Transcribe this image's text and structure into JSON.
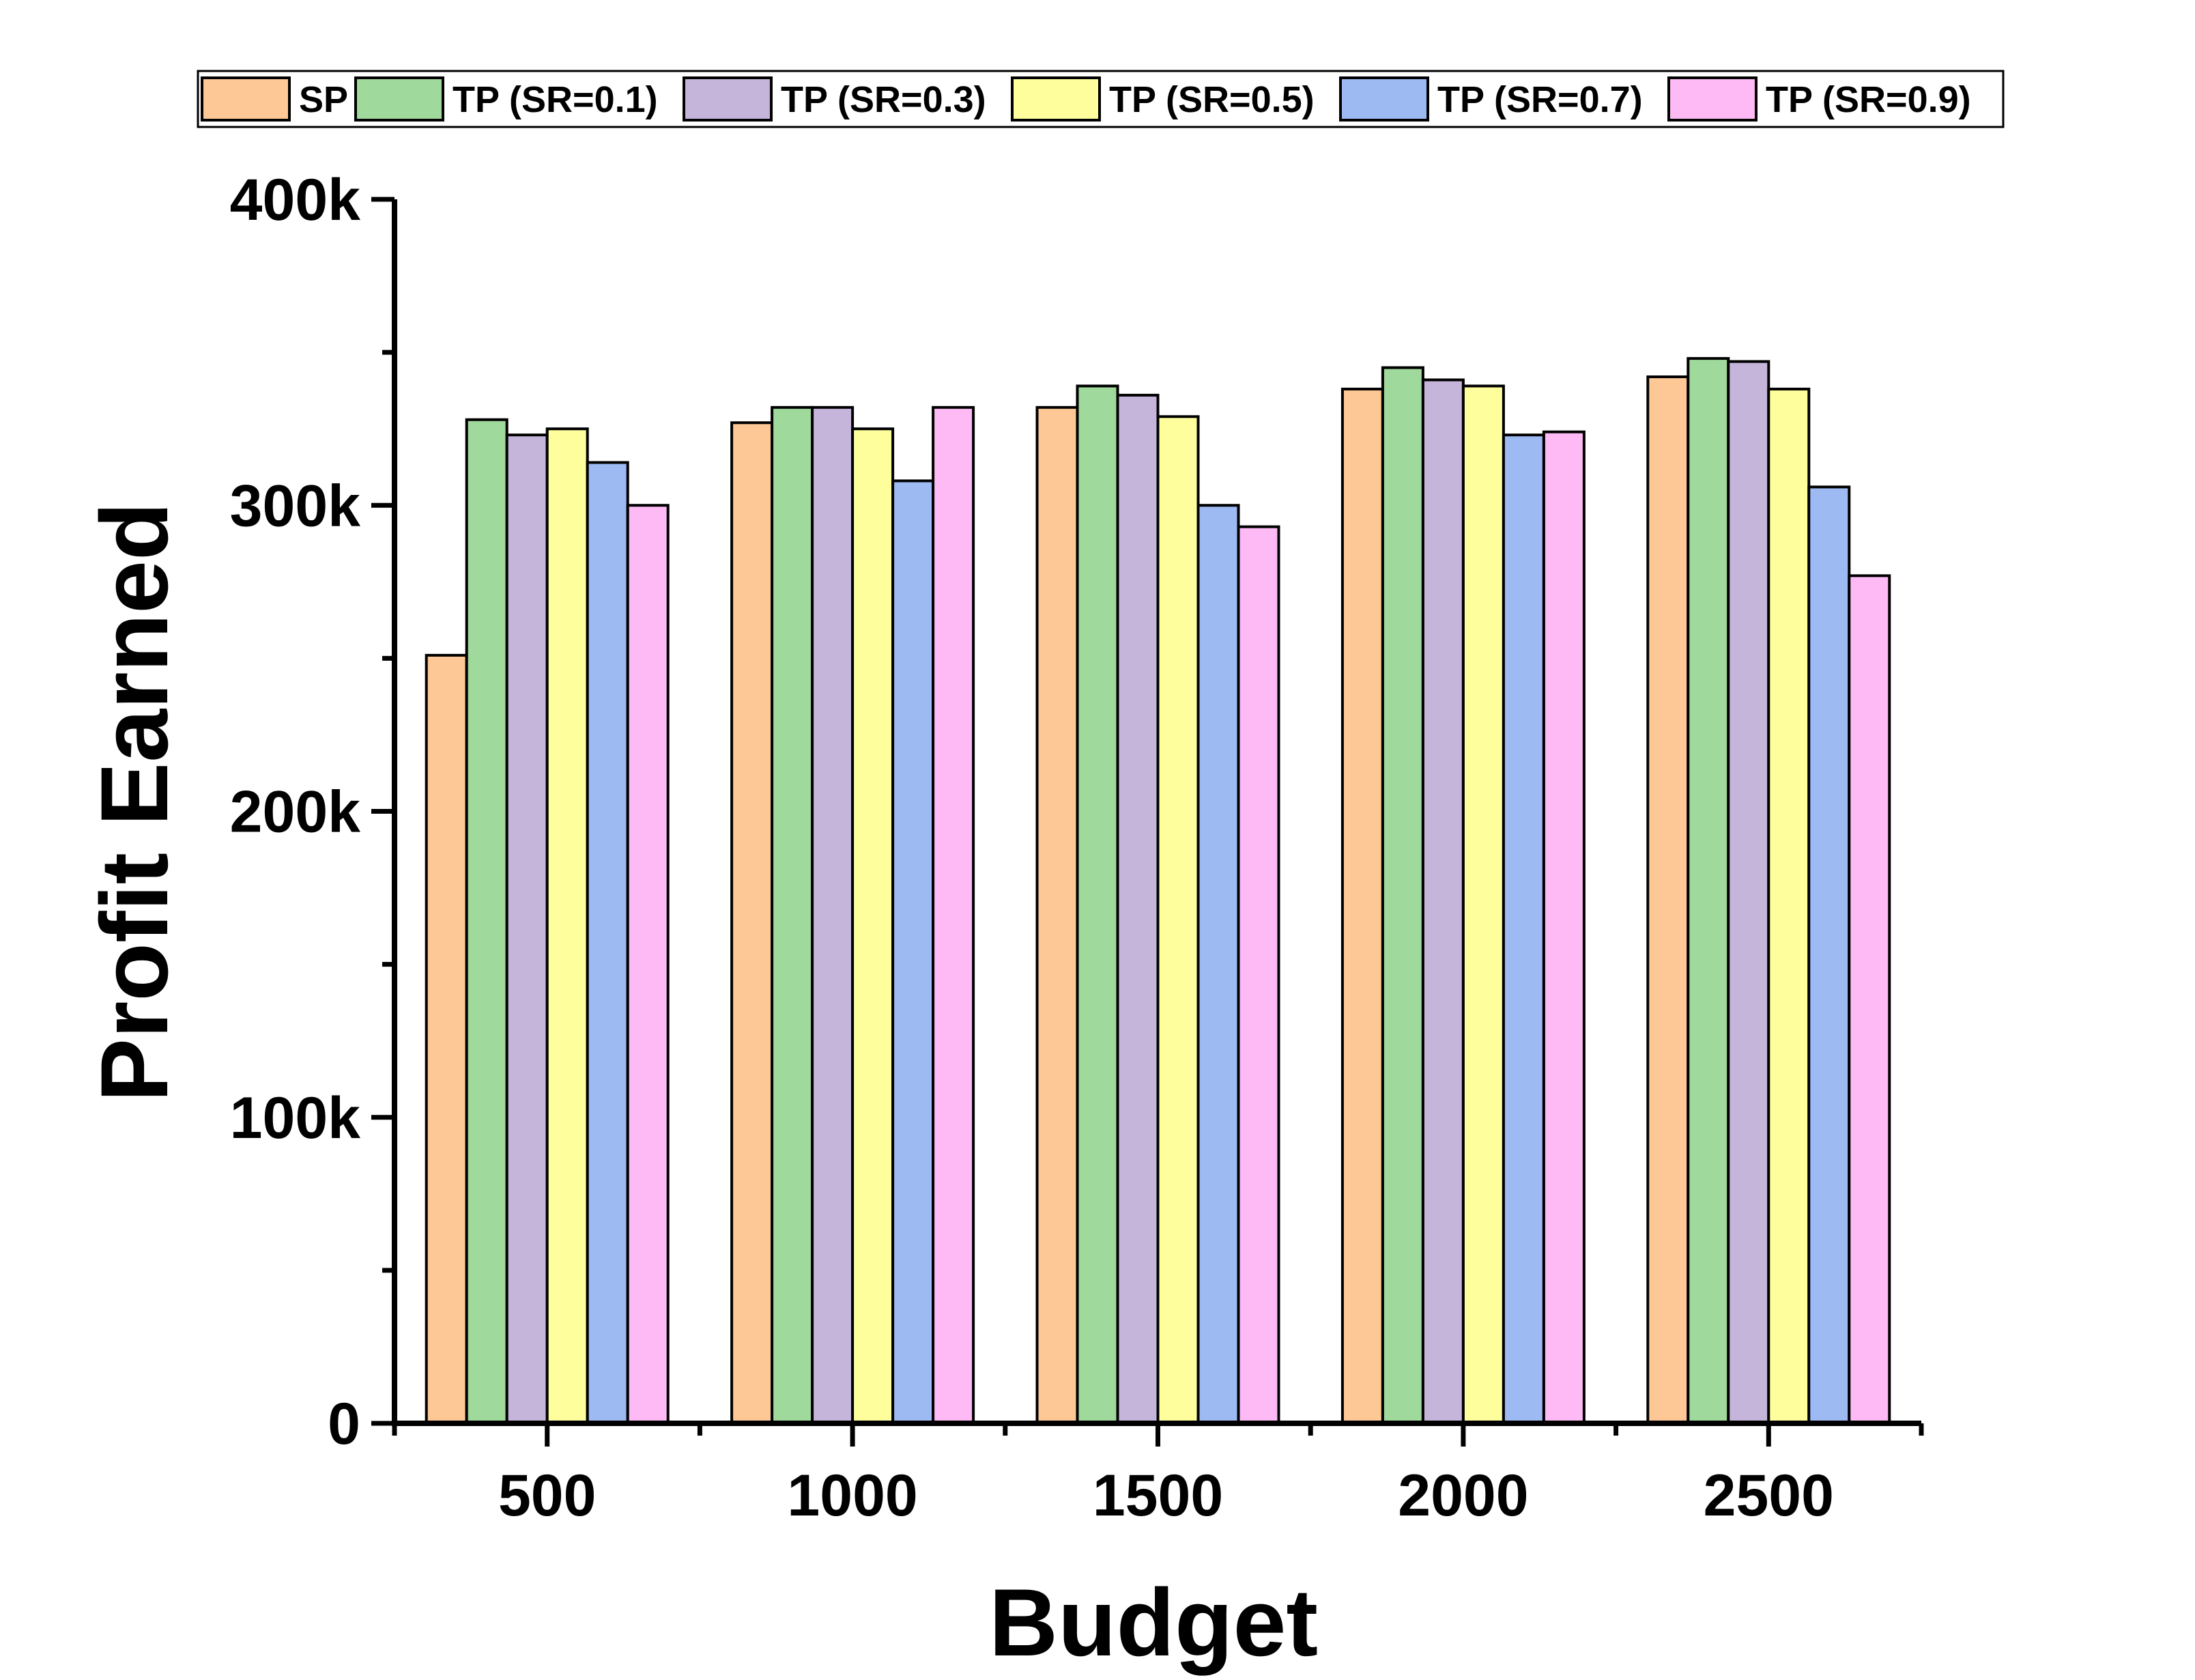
{
  "chart_data": {
    "type": "bar",
    "title": "",
    "xlabel": "Budget",
    "ylabel": "Profit Earned",
    "categories": [
      "500",
      "1000",
      "1500",
      "2000",
      "2500"
    ],
    "ylim": [
      0,
      400000
    ],
    "yticks": [
      0,
      100000,
      200000,
      300000,
      400000
    ],
    "ytick_labels": [
      "0",
      "100k",
      "200k",
      "300k",
      "400k"
    ],
    "legend_position": "top",
    "grid": false,
    "series": [
      {
        "name": "SP",
        "color": "#FDC895",
        "values": [
          251000,
          327000,
          332000,
          338000,
          342000
        ]
      },
      {
        "name": "TP (SR=0.1)",
        "color": "#A0D99C",
        "values": [
          328000,
          332000,
          339000,
          345000,
          348000
        ]
      },
      {
        "name": "TP (SR=0.3)",
        "color": "#C5B5DA",
        "values": [
          323000,
          332000,
          336000,
          341000,
          347000
        ]
      },
      {
        "name": "TP (SR=0.5)",
        "color": "#FEFE9D",
        "values": [
          325000,
          325000,
          329000,
          339000,
          338000
        ]
      },
      {
        "name": "TP (SR=0.7)",
        "color": "#9EBAF2",
        "values": [
          314000,
          308000,
          300000,
          323000,
          306000
        ]
      },
      {
        "name": "TP (SR=0.9)",
        "color": "#FDBAF4",
        "values": [
          300000,
          332000,
          293000,
          324000,
          277000
        ]
      }
    ]
  }
}
